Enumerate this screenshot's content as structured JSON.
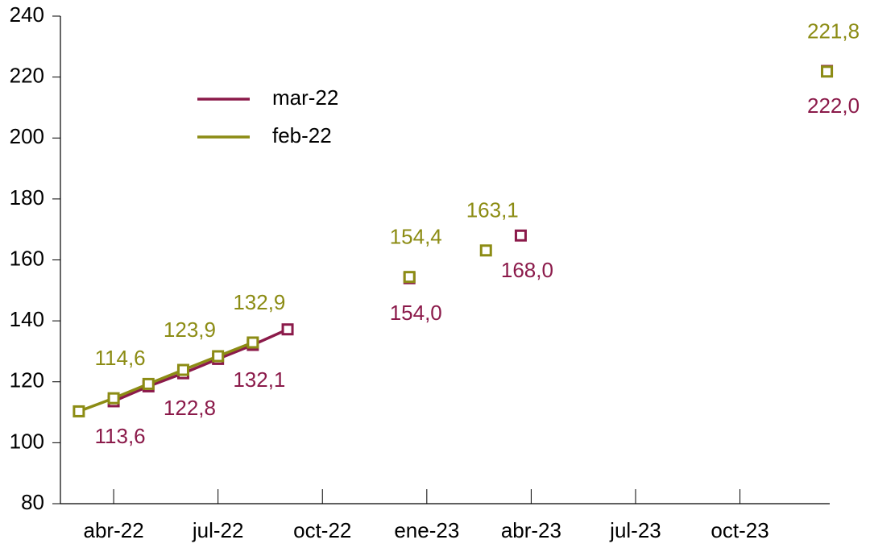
{
  "chart_data": {
    "type": "line",
    "series": [
      {
        "name": "mar-22",
        "color": "#8b1a4a",
        "x": [
          0,
          1,
          2,
          3,
          4,
          5,
          8.5,
          11.7,
          20.5
        ],
        "values": [
          113.6,
          118.5,
          122.8,
          127.5,
          132.1,
          137.2,
          154.0,
          168.0,
          222.0
        ],
        "value_labels": [
          "113,6",
          null,
          "122,8",
          null,
          "132,1",
          null,
          "154,0",
          "168,0",
          "222,0"
        ]
      },
      {
        "name": "feb-22",
        "color": "#8c8c14",
        "x": [
          -1,
          0,
          1,
          2,
          3,
          4,
          8.5,
          10.7,
          20.5
        ],
        "values": [
          110.3,
          114.6,
          119.3,
          123.9,
          128.4,
          132.9,
          154.4,
          163.1,
          221.8
        ],
        "value_labels": [
          null,
          "114,6",
          null,
          "123,9",
          null,
          "132,9",
          "154,4",
          "163,1",
          "221,8"
        ]
      }
    ],
    "xlim": [
      -1.53,
      20.58
    ],
    "xticks": [
      {
        "value": 0,
        "label": "abr-22"
      },
      {
        "value": 3,
        "label": "jul-22"
      },
      {
        "value": 6,
        "label": "oct-22"
      },
      {
        "value": 9,
        "label": "ene-23"
      },
      {
        "value": 12,
        "label": "abr-23"
      },
      {
        "value": 15,
        "label": "jul-23"
      },
      {
        "value": 18,
        "label": "oct-23"
      }
    ],
    "ylim": [
      80,
      240
    ],
    "yticks": [
      80,
      100,
      120,
      140,
      160,
      180,
      200,
      220,
      240
    ],
    "grid": false,
    "legend": "upper-left"
  }
}
